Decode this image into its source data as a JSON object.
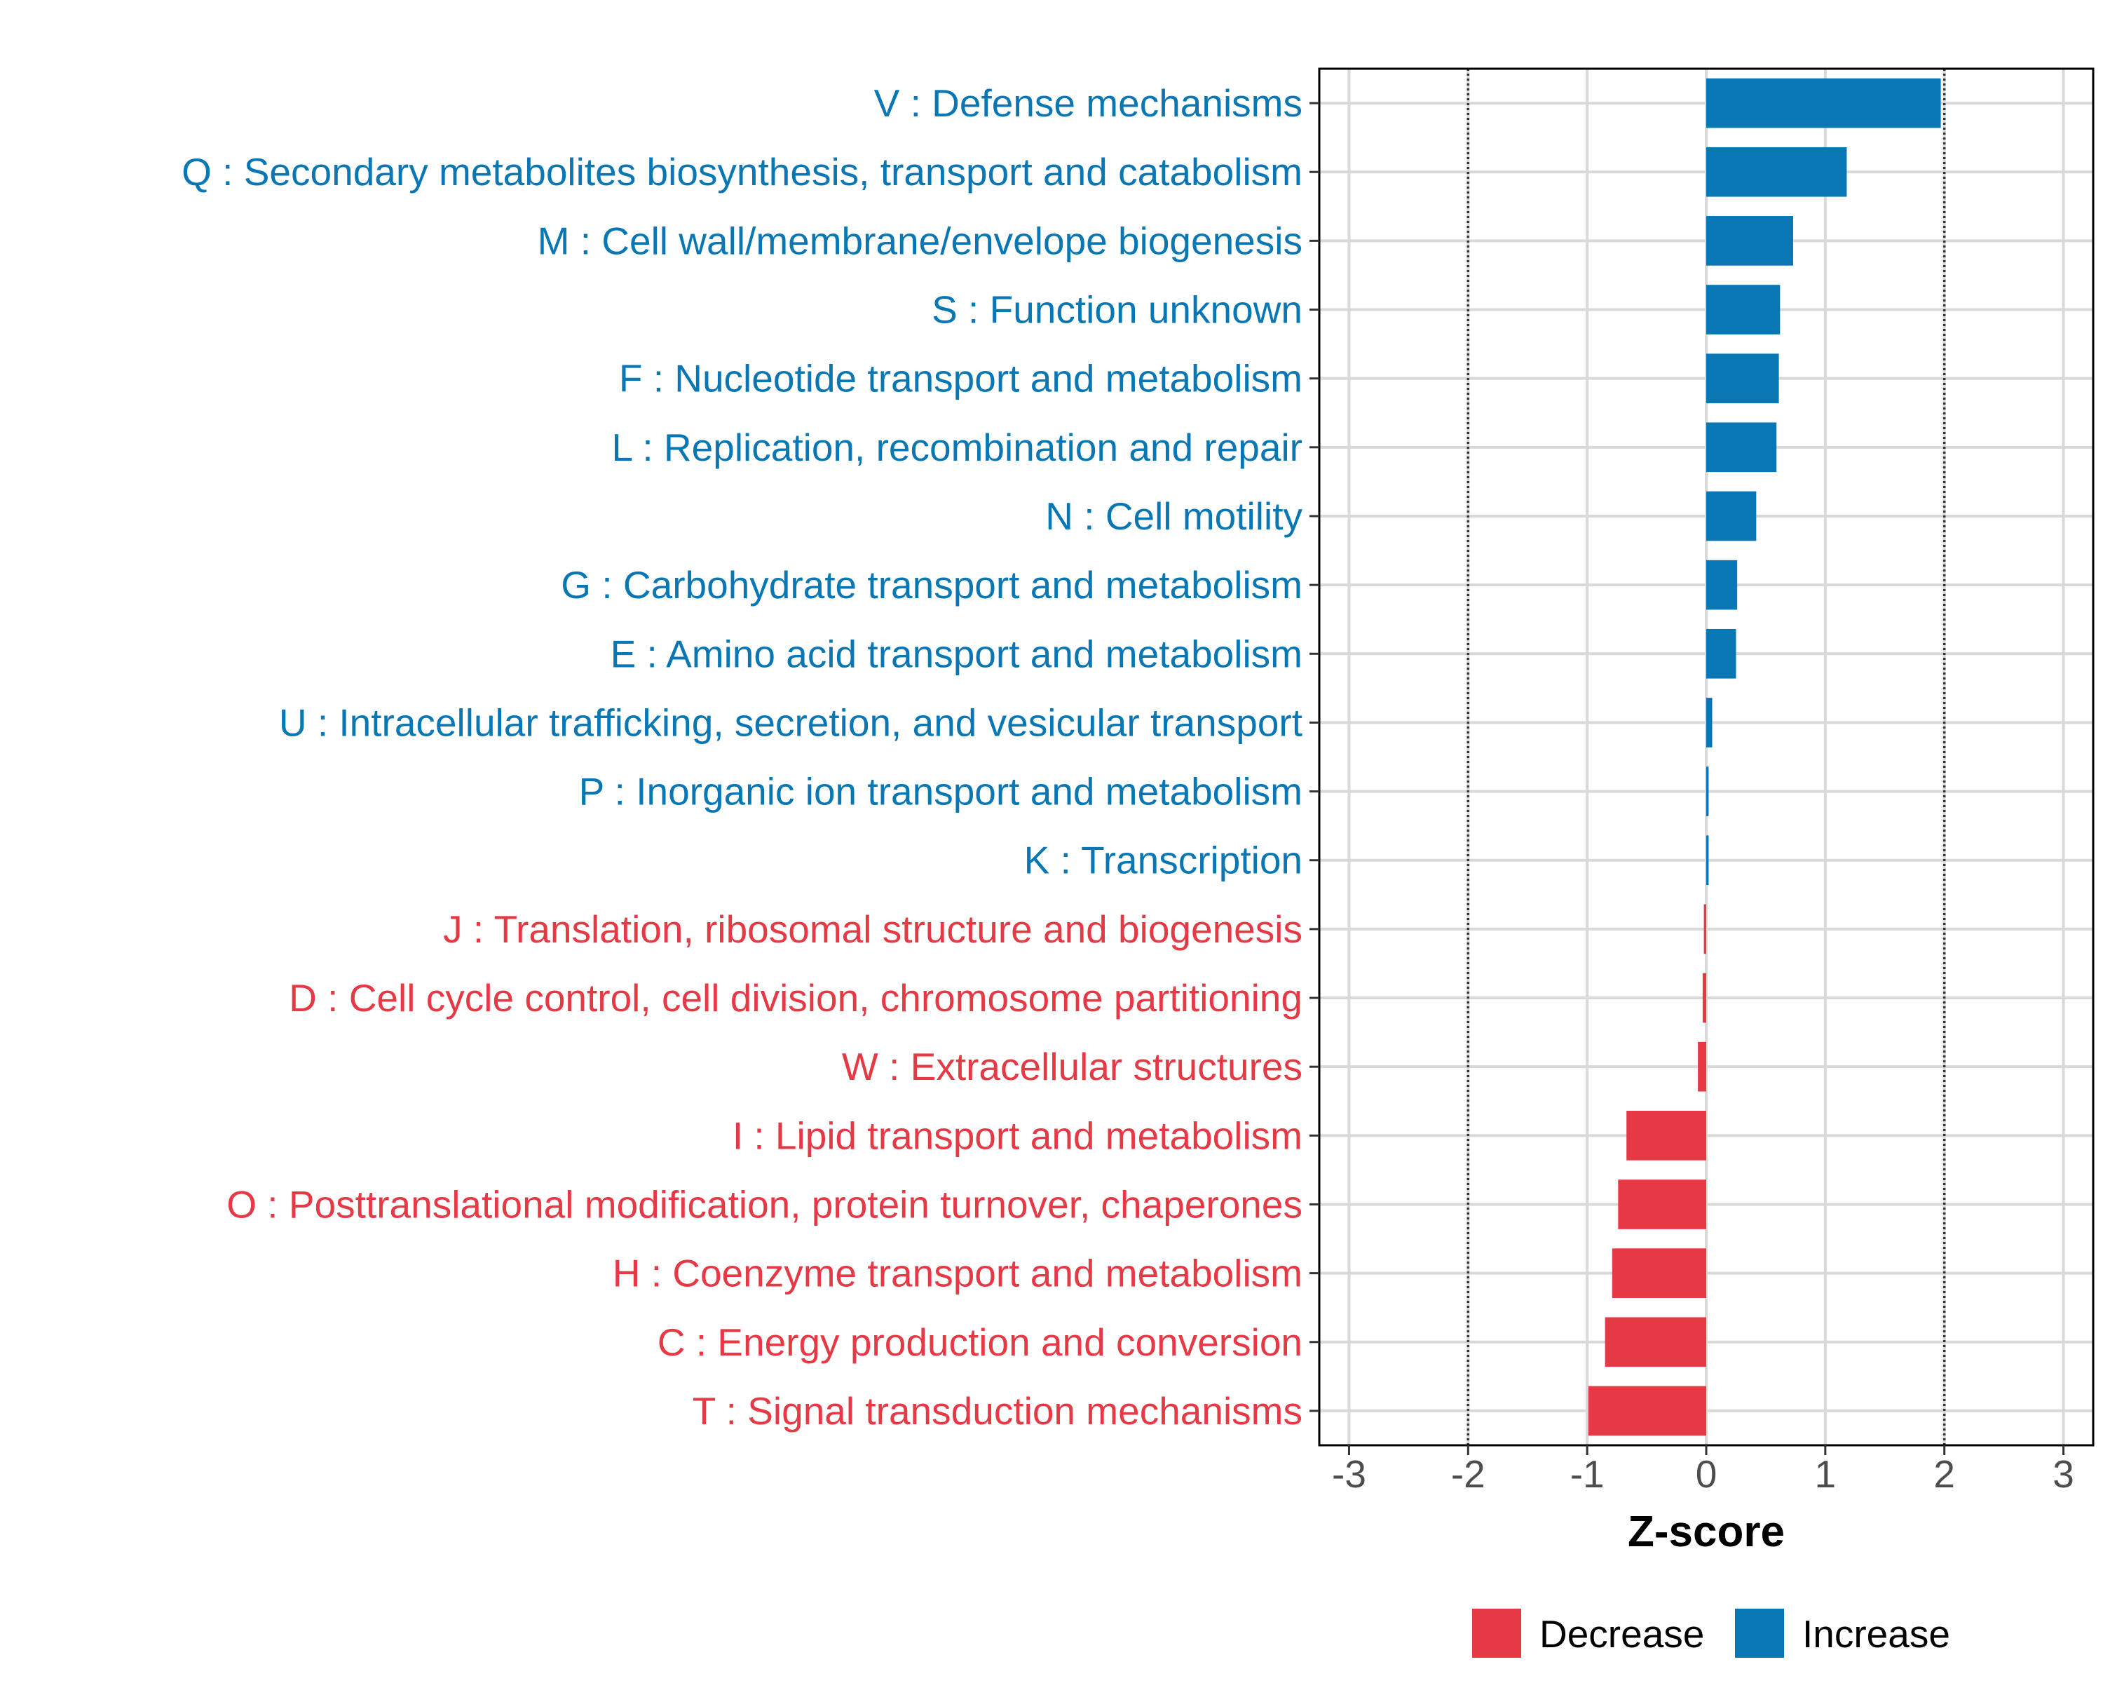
{
  "chart_data": {
    "type": "bar",
    "orientation": "horizontal",
    "xlabel": "Z-score",
    "ylabel": "",
    "xlim": [
      -3.25,
      3.25
    ],
    "xticks": [
      -3,
      -2,
      -1,
      0,
      1,
      2,
      3
    ],
    "xtick_labels": [
      "-3",
      "-2",
      "-1",
      "0",
      "1",
      "2",
      "3"
    ],
    "reference_lines": [
      -2,
      2
    ],
    "grid": true,
    "legend_position": "bottom",
    "legend": [
      {
        "label": "Decrease",
        "color": "#E63946"
      },
      {
        "label": "Increase",
        "color": "#0A77B5"
      }
    ],
    "categories": [
      "V : Defense mechanisms",
      "Q : Secondary metabolites biosynthesis, transport and catabolism",
      "M : Cell wall/membrane/envelope biogenesis",
      "S : Function unknown",
      "F : Nucleotide transport and metabolism",
      "L : Replication, recombination and repair",
      "N : Cell motility",
      "G : Carbohydrate transport and metabolism",
      "E : Amino acid transport and metabolism",
      "U : Intracellular trafficking, secretion, and vesicular transport",
      "P : Inorganic ion transport and metabolism",
      "K : Transcription",
      "J : Translation, ribosomal structure and biogenesis",
      "D : Cell cycle control, cell division, chromosome partitioning",
      "W : Extracellular structures",
      "I : Lipid transport and metabolism",
      "O : Posttranslational modification, protein turnover, chaperones",
      "H : Coenzyme transport and metabolism",
      "C : Energy production and conversion",
      "T : Signal transduction mechanisms"
    ],
    "values": [
      1.97,
      1.18,
      0.73,
      0.62,
      0.61,
      0.59,
      0.42,
      0.26,
      0.25,
      0.05,
      0.02,
      0.02,
      -0.02,
      -0.03,
      -0.07,
      -0.67,
      -0.74,
      -0.79,
      -0.85,
      -0.99
    ],
    "groups": [
      "Increase",
      "Increase",
      "Increase",
      "Increase",
      "Increase",
      "Increase",
      "Increase",
      "Increase",
      "Increase",
      "Increase",
      "Increase",
      "Increase",
      "Decrease",
      "Decrease",
      "Decrease",
      "Decrease",
      "Decrease",
      "Decrease",
      "Decrease",
      "Decrease"
    ]
  }
}
